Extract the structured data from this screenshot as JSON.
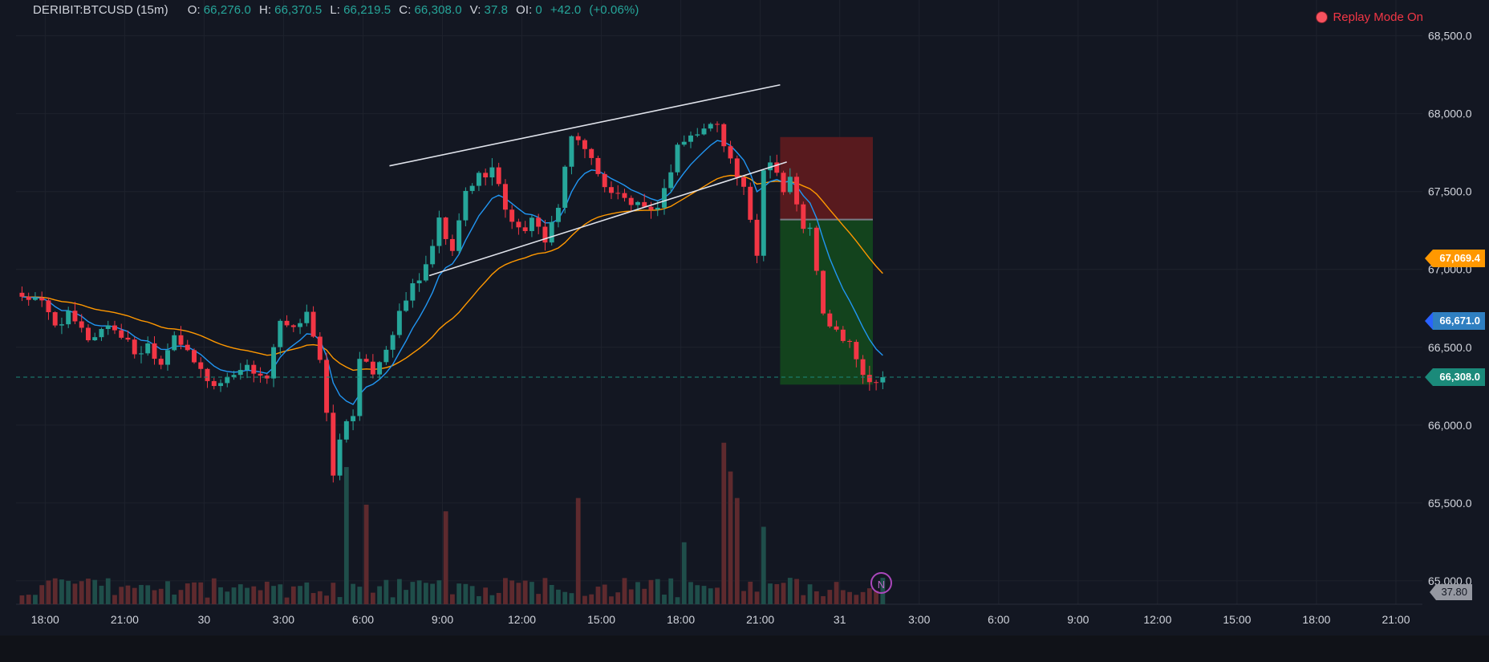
{
  "header": {
    "symbol": "DERIBIT:BTCUSD (15m)",
    "o_label": "O:",
    "o_value": "66,276.0",
    "h_label": "H:",
    "h_value": "66,370.5",
    "l_label": "L:",
    "l_value": "66,219.5",
    "c_label": "C:",
    "c_value": "66,308.0",
    "v_label": "V:",
    "v_value": "37.8",
    "oi_label": "OI:",
    "oi_value": "0",
    "change": "+42.0",
    "change_pct": "(+0.06%)"
  },
  "replay_label": "Replay Mode On",
  "price_tags": {
    "ema_slow": "67,069.4",
    "ema_fast": "66,671.0",
    "last": "66,308.0"
  },
  "volume_tag": "37.80",
  "news_label": "N",
  "colors": {
    "background": "#131722",
    "up": "#26a69a",
    "down": "#f23645",
    "ema_fast": "#2196f3",
    "ema_slow": "#ff9800",
    "stop_zone": "#5c1a1f",
    "target_zone": "#13461d"
  },
  "chart_data": {
    "type": "candlestick",
    "y_ticks": [
      "68,500.0",
      "68,000.0",
      "67,500.0",
      "67,000.0",
      "66,500.0",
      "66,000.0",
      "65,500.0",
      "65,000.0"
    ],
    "y_tick_values": [
      68500,
      68000,
      67500,
      67000,
      66500,
      66000,
      65500,
      65000
    ],
    "ylim": [
      64850,
      68730
    ],
    "x_ticks": [
      "18:00",
      "21:00",
      "30",
      "3:00",
      "6:00",
      "9:00",
      "12:00",
      "15:00",
      "18:00",
      "21:00",
      "31",
      "3:00",
      "6:00",
      "9:00",
      "12:00",
      "15:00",
      "18:00",
      "21:00"
    ],
    "x_tick_hours": [
      18,
      21,
      24,
      27,
      30,
      33,
      36,
      39,
      42,
      45,
      48,
      51,
      54,
      57,
      60,
      63,
      66,
      69
    ],
    "xlim_hours": [
      16.9,
      70.0
    ],
    "bar_hours": 0.25,
    "first_bar_hour": 17.0,
    "grid": true,
    "volume_scale_max": 70,
    "anchors": [
      [
        17.0,
        66850
      ],
      [
        18.0,
        66780
      ],
      [
        18.5,
        66650
      ],
      [
        19.0,
        66700
      ],
      [
        19.8,
        66550
      ],
      [
        20.5,
        66650
      ],
      [
        21.0,
        66580
      ],
      [
        21.6,
        66450
      ],
      [
        22.0,
        66520
      ],
      [
        22.5,
        66400
      ],
      [
        23.0,
        66600
      ],
      [
        23.5,
        66450
      ],
      [
        24.0,
        66350
      ],
      [
        24.5,
        66250
      ],
      [
        25.0,
        66300
      ],
      [
        25.5,
        66380
      ],
      [
        26.0,
        66350
      ],
      [
        26.5,
        66300
      ],
      [
        27.0,
        66650
      ],
      [
        27.5,
        66600
      ],
      [
        28.0,
        66750
      ],
      [
        28.5,
        66400
      ],
      [
        29.0,
        65700
      ],
      [
        29.4,
        66000
      ],
      [
        29.8,
        66100
      ],
      [
        30.0,
        66400
      ],
      [
        30.5,
        66350
      ],
      [
        31.0,
        66500
      ],
      [
        31.5,
        66700
      ],
      [
        32.0,
        66900
      ],
      [
        32.5,
        67000
      ],
      [
        33.0,
        67300
      ],
      [
        33.5,
        67100
      ],
      [
        34.0,
        67500
      ],
      [
        34.5,
        67600
      ],
      [
        35.0,
        67650
      ],
      [
        35.5,
        67400
      ],
      [
        36.0,
        67250
      ],
      [
        36.5,
        67300
      ],
      [
        37.0,
        67200
      ],
      [
        37.5,
        67400
      ],
      [
        38.0,
        67850
      ],
      [
        38.5,
        67800
      ],
      [
        39.0,
        67600
      ],
      [
        39.5,
        67500
      ],
      [
        40.0,
        67450
      ],
      [
        40.5,
        67400
      ],
      [
        41.0,
        67350
      ],
      [
        41.5,
        67500
      ],
      [
        42.0,
        67800
      ],
      [
        42.5,
        67850
      ],
      [
        43.0,
        67900
      ],
      [
        43.5,
        67950
      ],
      [
        44.0,
        67700
      ],
      [
        44.5,
        67500
      ],
      [
        45.0,
        67100
      ],
      [
        45.3,
        67750
      ],
      [
        45.6,
        67700
      ],
      [
        46.0,
        67500
      ],
      [
        46.3,
        67600
      ],
      [
        46.6,
        67300
      ],
      [
        47.0,
        67250
      ],
      [
        47.5,
        66700
      ],
      [
        48.0,
        66600
      ],
      [
        48.5,
        66500
      ],
      [
        49.0,
        66350
      ],
      [
        49.25,
        66276
      ],
      [
        49.5,
        66308
      ]
    ],
    "volume_spikes": [
      [
        29.25,
        62
      ],
      [
        30.0,
        45
      ],
      [
        33.0,
        42
      ],
      [
        38.0,
        48
      ],
      [
        42.0,
        28
      ],
      [
        43.5,
        73
      ],
      [
        43.75,
        60
      ],
      [
        44.0,
        48
      ],
      [
        45.0,
        35
      ]
    ],
    "trendlines": [
      {
        "name": "channel-upper",
        "from": [
          31.0,
          67665
        ],
        "to": [
          45.75,
          68185
        ]
      },
      {
        "name": "channel-lower",
        "from": [
          32.5,
          66960
        ],
        "to": [
          46.0,
          67690
        ]
      }
    ],
    "position": {
      "type": "short",
      "start_hour": 45.75,
      "end_hour": 49.25,
      "stop_price": 67850,
      "entry_price": 67320,
      "target_price": 66260,
      "entry_label_price": 67069.4
    },
    "last_price": 66308.0,
    "ema_fast_last": 66671.0,
    "ema_slow_last": 67069.4
  }
}
